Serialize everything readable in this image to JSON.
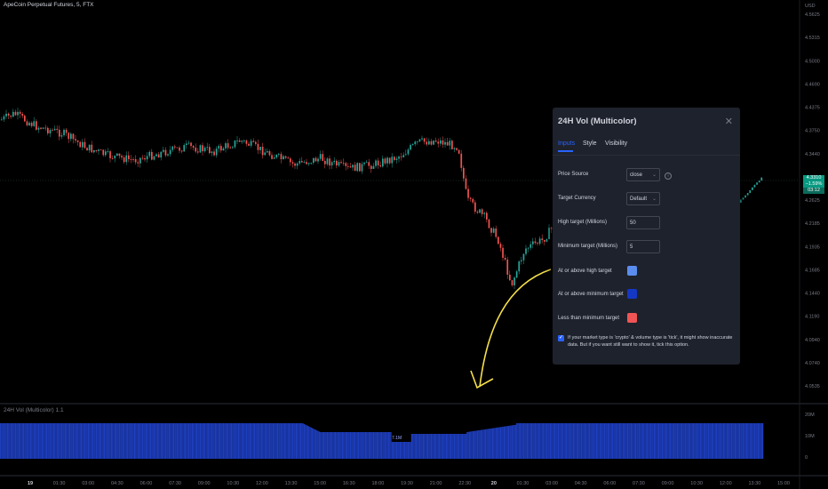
{
  "chart": {
    "symbol_title": "ApeCoin Perpetual Futures, 5, FTX",
    "currency": "USD",
    "price_axis": [
      "4.5625",
      "4.5315",
      "4.5000",
      "4.4690",
      "4.4375",
      "4.3750",
      "4.3440",
      "4.2935",
      "4.2625",
      "4.2185",
      "4.1935",
      "4.1685",
      "4.1440",
      "4.1190",
      "4.0940",
      "4.0740",
      "4.0535"
    ],
    "last_price": "4.3310",
    "change": "−1.59%",
    "countdown": "03:12",
    "time_axis": [
      "19",
      "01:30",
      "03:00",
      "04:30",
      "06:00",
      "07:30",
      "09:00",
      "10:30",
      "12:00",
      "13:30",
      "15:00",
      "16:30",
      "18:00",
      "19:30",
      "21:00",
      "22:30",
      "20",
      "01:30",
      "03:00",
      "04:30",
      "06:00",
      "07:30",
      "09:00",
      "10:30",
      "12:00",
      "13:30",
      "15:00"
    ],
    "indicator_label": "24H Vol (Multicolor) 1.1",
    "volume_axis": [
      "20M",
      "10M",
      "0"
    ],
    "volume_badge": "7.1M",
    "colors": {
      "up": "#26a69a",
      "down": "#ef5350",
      "volume": "#1e3fbf",
      "annotation": "#f5e04a"
    }
  },
  "dialog": {
    "title": "24H Vol (Multicolor)",
    "close_icon": "close-icon",
    "tabs": [
      {
        "label": "Inputs",
        "active": true
      },
      {
        "label": "Style",
        "active": false
      },
      {
        "label": "Visibility",
        "active": false
      }
    ],
    "price_source": {
      "label": "Price Source",
      "value": "close"
    },
    "target_currency": {
      "label": "Target Currency",
      "value": "Default"
    },
    "high_target": {
      "label": "High target (Millions)",
      "value": "50"
    },
    "min_target": {
      "label": "Minimum target (Millions)",
      "value": "5"
    },
    "colors": [
      {
        "label": "At or above high target",
        "color": "#5b8def"
      },
      {
        "label": "At or above minimum target",
        "color": "#1437c4"
      },
      {
        "label": "Less than minimum target",
        "color": "#f05454"
      }
    ],
    "checkbox": {
      "checked": true,
      "text": "If your market type is 'crypto' & volume type is 'tick', it might show inaccurate data. But if you want still want to show it, tick this option."
    }
  }
}
